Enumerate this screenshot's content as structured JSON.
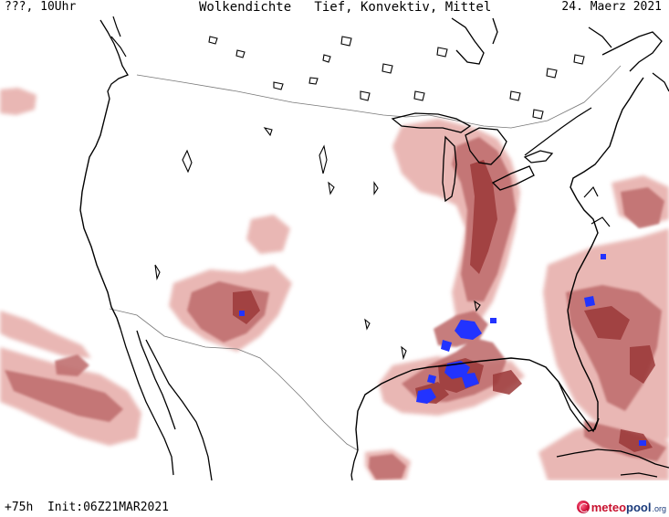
{
  "header": {
    "left": "???, 10Uhr",
    "center": "Wolkendichte   Tief, Konvektiv, Mittel",
    "right": "24. Maerz 2021"
  },
  "footer": {
    "forecast": "+75h  Init:06Z21MAR2021",
    "logo_meteo": "meteo",
    "logo_pool": "pool",
    "logo_org": ".org"
  },
  "colors": {
    "cloud_light": "#e8b4b0",
    "cloud_medium": "#c07070",
    "cloud_dark": "#9c3a3a",
    "convective": "#2233ff",
    "coastline": "#000000",
    "border": "#777777"
  },
  "map": {
    "region": "USA",
    "layers": [
      "low clouds",
      "convective clouds",
      "mid clouds"
    ]
  }
}
